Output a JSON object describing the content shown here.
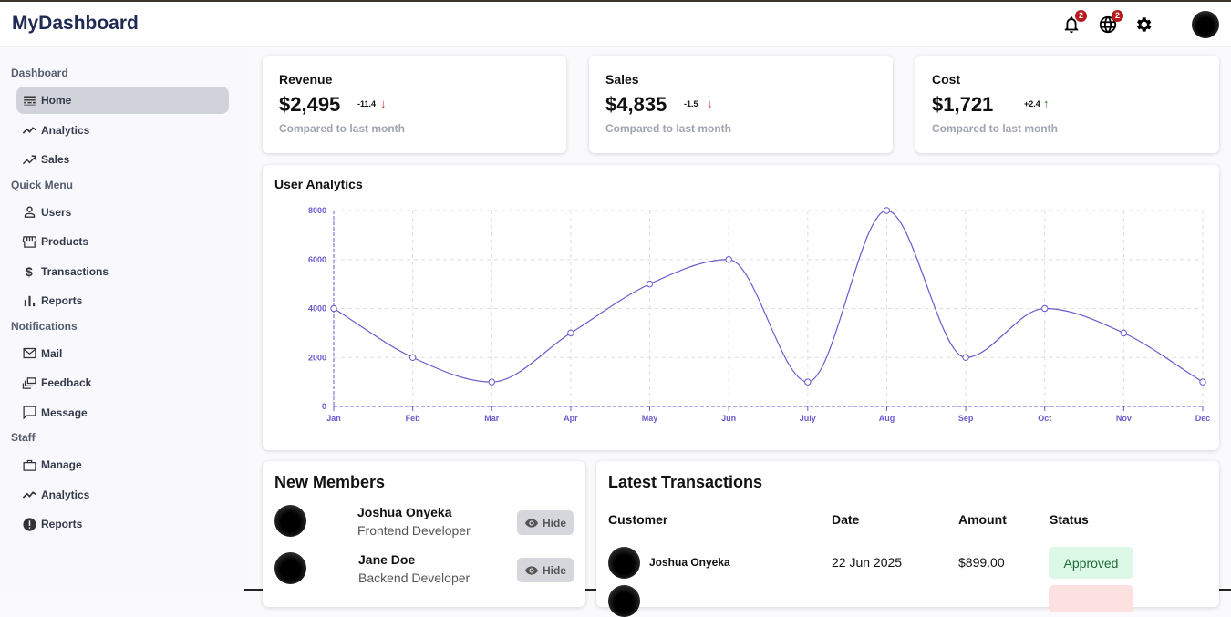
{
  "header": {
    "title": "MyDashboard",
    "notifications": "2",
    "language_badge": "2"
  },
  "sidebar": {
    "sections": [
      {
        "title": "Dashboard",
        "items": [
          {
            "label": "Home",
            "icon": "home-icon"
          },
          {
            "label": "Analytics",
            "icon": "timeline-icon"
          },
          {
            "label": "Sales",
            "icon": "trending-up-icon"
          }
        ]
      },
      {
        "title": "Quick Menu",
        "items": [
          {
            "label": "Users",
            "icon": "user-icon"
          },
          {
            "label": "Products",
            "icon": "storefront-icon"
          },
          {
            "label": "Transactions",
            "icon": "dollar-icon"
          },
          {
            "label": "Reports",
            "icon": "bar-chart-icon"
          }
        ]
      },
      {
        "title": "Notifications",
        "items": [
          {
            "label": "Mail",
            "icon": "mail-icon"
          },
          {
            "label": "Feedback",
            "icon": "dynamic-feed-icon"
          },
          {
            "label": "Message",
            "icon": "chat-icon"
          }
        ]
      },
      {
        "title": "Staff",
        "items": [
          {
            "label": "Manage",
            "icon": "work-icon"
          },
          {
            "label": "Analytics",
            "icon": "timeline-icon"
          },
          {
            "label": "Reports",
            "icon": "report-icon"
          }
        ]
      }
    ]
  },
  "stats": [
    {
      "title": "Revenue",
      "value": "$2,495",
      "delta": "-11.4",
      "dir": "down",
      "note": "Compared to last month"
    },
    {
      "title": "Sales",
      "value": "$4,835",
      "delta": "-1.5",
      "dir": "down",
      "note": "Compared to last month"
    },
    {
      "title": "Cost",
      "value": "$1,721",
      "delta": "+2.4",
      "dir": "up",
      "note": "Compared to last month"
    }
  ],
  "colors": {
    "line": "#6a5acd",
    "down": "#d32f2f",
    "up": "#2e7d32"
  },
  "chart_data": {
    "type": "line",
    "title": "User Analytics",
    "categories": [
      "Jan",
      "Feb",
      "Mar",
      "Apr",
      "May",
      "Jun",
      "July",
      "Aug",
      "Sep",
      "Oct",
      "Nov",
      "Dec"
    ],
    "values": [
      4000,
      2000,
      1000,
      3000,
      5000,
      6000,
      1000,
      8000,
      2000,
      4000,
      3000,
      1000
    ],
    "yticks": [
      0,
      2000,
      4000,
      6000,
      8000
    ],
    "ylim": [
      0,
      8000
    ],
    "grid": true
  },
  "members": {
    "title": "New Members",
    "hide_label": "Hide",
    "list": [
      {
        "name": "Joshua Onyeka",
        "role": "Frontend Developer"
      },
      {
        "name": "Jane Doe",
        "role": "Backend Developer"
      }
    ]
  },
  "transactions": {
    "title": "Latest Transactions",
    "headers": [
      "Customer",
      "Date",
      "Amount",
      "Status"
    ],
    "rows": [
      {
        "customer": "Joshua Onyeka",
        "date": "22 Jun 2025",
        "amount": "$899.00",
        "status": "Approved"
      }
    ]
  }
}
